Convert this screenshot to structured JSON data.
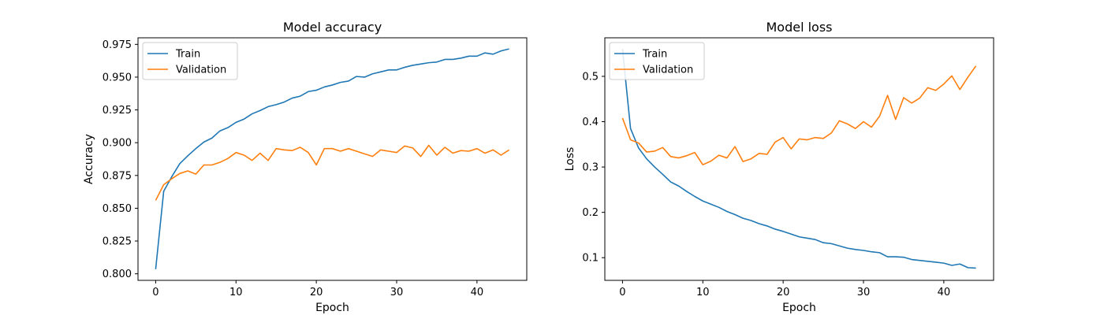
{
  "chart_data": [
    {
      "type": "line",
      "title": "Model accuracy",
      "xlabel": "Epoch",
      "ylabel": "Accuracy",
      "xlim": [
        -2.2,
        46.2
      ],
      "ylim": [
        0.795,
        0.98
      ],
      "xticks": [
        0,
        10,
        20,
        30,
        40
      ],
      "xtick_labels": [
        "0",
        "10",
        "20",
        "30",
        "40"
      ],
      "yticks": [
        0.8,
        0.825,
        0.85,
        0.875,
        0.9,
        0.925,
        0.95,
        0.975
      ],
      "ytick_labels": [
        "0.800",
        "0.825",
        "0.850",
        "0.875",
        "0.900",
        "0.925",
        "0.950",
        "0.975"
      ],
      "grid": false,
      "legend_position": "upper-left",
      "x": [
        0,
        1,
        2,
        3,
        4,
        5,
        6,
        7,
        8,
        9,
        10,
        11,
        12,
        13,
        14,
        15,
        16,
        17,
        18,
        19,
        20,
        21,
        22,
        23,
        24,
        25,
        26,
        27,
        28,
        29,
        30,
        31,
        32,
        33,
        34,
        35,
        36,
        37,
        38,
        39,
        40,
        41,
        42,
        43,
        44
      ],
      "series": [
        {
          "name": "Train",
          "color": "#1f77b4",
          "values": [
            0.8035,
            0.863,
            0.874,
            0.884,
            0.89,
            0.8955,
            0.9005,
            0.9035,
            0.909,
            0.9115,
            0.9155,
            0.918,
            0.922,
            0.9245,
            0.9275,
            0.929,
            0.931,
            0.934,
            0.9355,
            0.939,
            0.94,
            0.9425,
            0.944,
            0.946,
            0.947,
            0.9505,
            0.95,
            0.9525,
            0.954,
            0.9555,
            0.9555,
            0.9575,
            0.959,
            0.96,
            0.961,
            0.9615,
            0.9635,
            0.9635,
            0.9645,
            0.966,
            0.966,
            0.9685,
            0.9675,
            0.97,
            0.9715
          ]
        },
        {
          "name": "Validation",
          "color": "#ff7f0e",
          "values": [
            0.856,
            0.868,
            0.8725,
            0.8765,
            0.8785,
            0.876,
            0.883,
            0.883,
            0.885,
            0.888,
            0.8925,
            0.8905,
            0.8865,
            0.892,
            0.8865,
            0.8955,
            0.8945,
            0.894,
            0.8965,
            0.8925,
            0.883,
            0.8955,
            0.8955,
            0.8935,
            0.8955,
            0.8935,
            0.8915,
            0.8895,
            0.8945,
            0.8935,
            0.8925,
            0.8975,
            0.896,
            0.8895,
            0.898,
            0.8905,
            0.8965,
            0.892,
            0.894,
            0.8935,
            0.8955,
            0.892,
            0.8945,
            0.8905,
            0.8945
          ]
        }
      ]
    },
    {
      "type": "line",
      "title": "Model loss",
      "xlabel": "Epoch",
      "ylabel": "Loss",
      "xlim": [
        -2.2,
        46.2
      ],
      "ylim": [
        0.05,
        0.585
      ],
      "xticks": [
        0,
        10,
        20,
        30,
        40
      ],
      "xtick_labels": [
        "0",
        "10",
        "20",
        "30",
        "40"
      ],
      "yticks": [
        0.1,
        0.2,
        0.3,
        0.4,
        0.5
      ],
      "ytick_labels": [
        "0.1",
        "0.2",
        "0.3",
        "0.4",
        "0.5"
      ],
      "grid": false,
      "legend_position": "upper-left",
      "x": [
        0,
        1,
        2,
        3,
        4,
        5,
        6,
        7,
        8,
        9,
        10,
        11,
        12,
        13,
        14,
        15,
        16,
        17,
        18,
        19,
        20,
        21,
        22,
        23,
        24,
        25,
        26,
        27,
        28,
        29,
        30,
        31,
        32,
        33,
        34,
        35,
        36,
        37,
        38,
        39,
        40,
        41,
        42,
        43,
        44
      ],
      "series": [
        {
          "name": "Train",
          "color": "#1f77b4",
          "values": [
            0.56,
            0.385,
            0.342,
            0.318,
            0.3,
            0.284,
            0.267,
            0.258,
            0.246,
            0.235,
            0.225,
            0.218,
            0.211,
            0.202,
            0.195,
            0.187,
            0.182,
            0.175,
            0.17,
            0.163,
            0.158,
            0.152,
            0.146,
            0.143,
            0.14,
            0.133,
            0.131,
            0.126,
            0.121,
            0.118,
            0.116,
            0.113,
            0.111,
            0.102,
            0.102,
            0.101,
            0.096,
            0.094,
            0.092,
            0.09,
            0.088,
            0.083,
            0.086,
            0.078,
            0.077
          ]
        },
        {
          "name": "Validation",
          "color": "#ff7f0e",
          "values": [
            0.408,
            0.36,
            0.353,
            0.333,
            0.335,
            0.343,
            0.323,
            0.32,
            0.325,
            0.332,
            0.305,
            0.313,
            0.326,
            0.32,
            0.345,
            0.312,
            0.318,
            0.33,
            0.328,
            0.355,
            0.365,
            0.34,
            0.362,
            0.36,
            0.365,
            0.363,
            0.375,
            0.402,
            0.395,
            0.385,
            0.4,
            0.388,
            0.412,
            0.458,
            0.405,
            0.453,
            0.441,
            0.452,
            0.475,
            0.469,
            0.483,
            0.501,
            0.471,
            0.498,
            0.523
          ]
        }
      ]
    }
  ]
}
